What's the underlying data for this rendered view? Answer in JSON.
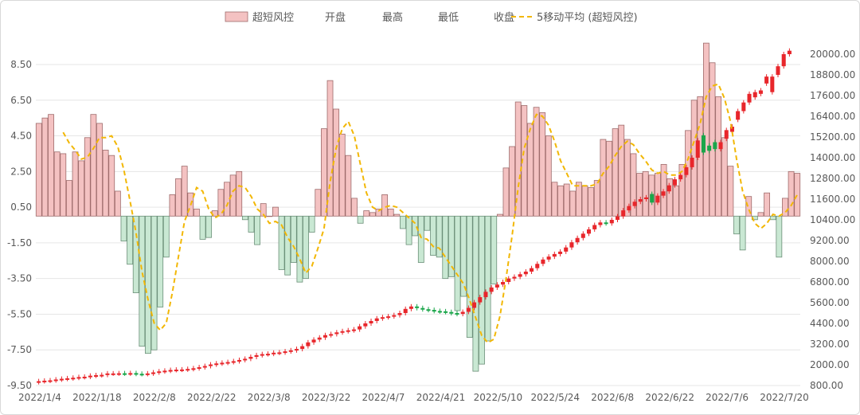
{
  "chart_data": {
    "type": "bar",
    "legend": {
      "position": "top",
      "items": [
        "超短风控",
        "开盘",
        "最高",
        "最低",
        "收盘",
        "5移动平均 (超短风控)"
      ]
    },
    "left_axis": {
      "ticks": [
        "8.50",
        "6.50",
        "4.50",
        "2.50",
        "0.50",
        "-1.50",
        "-3.50",
        "-5.50",
        "-7.50",
        "-9.50"
      ],
      "ylim": [
        -9.5,
        9.5
      ]
    },
    "right_axis": {
      "ticks": [
        "20000.00",
        "18800.00",
        "17600.00",
        "16400.00",
        "15200.00",
        "14000.00",
        "12800.00",
        "11600.00",
        "10400.00",
        "9200.00",
        "8000.00",
        "6800.00",
        "5600.00",
        "4400.00",
        "3200.00",
        "2000.00",
        "800.00"
      ],
      "ylim": [
        800,
        20600
      ]
    },
    "x_tick_labels": [
      "2022/1/4",
      "2022/1/18",
      "2022/2/8",
      "2022/2/22",
      "2022/3/8",
      "2022/3/22",
      "2022/4/7",
      "2022/4/21",
      "2022/5/10",
      "2022/5/24",
      "2022/6/8",
      "2022/6/22",
      "2022/7/6",
      "2022/7/20"
    ],
    "bar_values": [
      5.2,
      5.5,
      5.7,
      3.6,
      3.5,
      2.0,
      3.6,
      3.1,
      4.4,
      5.7,
      5.2,
      3.7,
      3.4,
      1.4,
      -1.4,
      -2.7,
      -4.3,
      -7.3,
      -7.7,
      -7.5,
      -5.1,
      -2.3,
      1.2,
      2.1,
      2.8,
      1.3,
      0.4,
      -1.3,
      -1.2,
      0.3,
      1.5,
      1.9,
      2.3,
      2.5,
      -0.2,
      -0.9,
      -1.6,
      0.7,
      0.0,
      0.5,
      -3.0,
      -3.3,
      -2.6,
      -3.7,
      -3.5,
      -0.9,
      1.5,
      4.9,
      7.6,
      6.0,
      4.6,
      3.4,
      1.0,
      -0.4,
      0.3,
      0.2,
      0.4,
      1.2,
      0.4,
      0.1,
      -0.7,
      -1.6,
      -1.1,
      -2.6,
      -0.8,
      -2.2,
      -2.3,
      -3.5,
      -3.4,
      -5.3,
      -4.5,
      -6.8,
      -8.7,
      -8.3,
      -7.0,
      -3.8,
      0.1,
      2.7,
      3.9,
      6.4,
      6.2,
      5.2,
      6.1,
      5.8,
      4.5,
      1.9,
      1.7,
      1.8,
      1.4,
      1.9,
      1.7,
      1.6,
      2.0,
      4.3,
      4.2,
      4.9,
      5.1,
      4.3,
      3.5,
      2.4,
      2.5,
      2.3,
      2.4,
      2.9,
      2.1,
      1.7,
      2.9,
      4.8,
      6.5,
      6.7,
      9.7,
      8.6,
      6.7,
      4.4,
      2.8,
      -1.0,
      -1.9,
      1.1,
      -0.2,
      0.2,
      1.3,
      -0.2,
      -2.3,
      1.0,
      2.5,
      2.4
    ],
    "ma5_values": [
      null,
      null,
      null,
      null,
      4.7,
      4.1,
      3.7,
      3.2,
      3.3,
      3.8,
      4.4,
      4.4,
      4.5,
      3.9,
      2.6,
      0.9,
      -0.9,
      -3.1,
      -4.7,
      -6.0,
      -6.4,
      -6.0,
      -4.3,
      -2.3,
      -0.3,
      0.6,
      1.6,
      1.4,
      0.4,
      -0.1,
      0.1,
      0.6,
      1.4,
      1.7,
      1.6,
      1.1,
      0.4,
      0.1,
      -0.4,
      -0.3,
      -0.5,
      -1.2,
      -1.7,
      -2.4,
      -3.2,
      -2.8,
      -1.8,
      -0.7,
      1.9,
      3.8,
      4.9,
      5.3,
      4.5,
      2.9,
      1.3,
      0.5,
      0.3,
      0.5,
      0.6,
      0.5,
      0.2,
      -0.1,
      -0.4,
      -1.2,
      -1.3,
      -1.7,
      -1.8,
      -2.3,
      -2.8,
      -3.3,
      -3.8,
      -4.7,
      -5.7,
      -6.7,
      -7.1,
      -6.9,
      -5.6,
      -3.5,
      -1.1,
      1.6,
      3.8,
      4.9,
      5.7,
      5.6,
      5.1,
      4.2,
      3.1,
      2.4,
      1.7,
      1.7,
      1.7,
      1.7,
      1.8,
      2.4,
      2.8,
      3.4,
      3.9,
      4.2,
      4.0,
      3.5,
      3.1,
      2.6,
      2.4,
      2.5,
      2.3,
      2.3,
      2.5,
      3.2,
      4.2,
      5.2,
      6.7,
      7.3,
      7.4,
      6.6,
      5.3,
      3.2,
      1.4,
      0.4,
      -0.4,
      -0.7,
      -0.4,
      0.1,
      0.0,
      0.2,
      0.6,
      1.2
    ],
    "candles": [
      {
        "o": 1000,
        "c": 1050
      },
      {
        "o": 1050,
        "c": 1080
      },
      {
        "o": 1080,
        "c": 1100
      },
      {
        "o": 1100,
        "c": 1150
      },
      {
        "o": 1150,
        "c": 1190
      },
      {
        "o": 1190,
        "c": 1220
      },
      {
        "o": 1220,
        "c": 1250
      },
      {
        "o": 1250,
        "c": 1290
      },
      {
        "o": 1290,
        "c": 1310
      },
      {
        "o": 1310,
        "c": 1370
      },
      {
        "o": 1370,
        "c": 1400
      },
      {
        "o": 1400,
        "c": 1420
      },
      {
        "o": 1420,
        "c": 1500
      },
      {
        "o": 1500,
        "c": 1500
      },
      {
        "o": 1500,
        "c": 1510
      },
      {
        "o": 1510,
        "c": 1500
      },
      {
        "o": 1500,
        "c": 1520
      },
      {
        "o": 1520,
        "c": 1480
      },
      {
        "o": 1480,
        "c": 1470
      },
      {
        "o": 1470,
        "c": 1500
      },
      {
        "o": 1500,
        "c": 1560
      },
      {
        "o": 1560,
        "c": 1620
      },
      {
        "o": 1620,
        "c": 1660
      },
      {
        "o": 1660,
        "c": 1700
      },
      {
        "o": 1700,
        "c": 1720
      },
      {
        "o": 1720,
        "c": 1730
      },
      {
        "o": 1730,
        "c": 1760
      },
      {
        "o": 1760,
        "c": 1800
      },
      {
        "o": 1800,
        "c": 1860
      },
      {
        "o": 1860,
        "c": 1930
      },
      {
        "o": 1930,
        "c": 2020
      },
      {
        "o": 2020,
        "c": 2080
      },
      {
        "o": 2080,
        "c": 2120
      },
      {
        "o": 2120,
        "c": 2160
      },
      {
        "o": 2160,
        "c": 2210
      },
      {
        "o": 2210,
        "c": 2280
      },
      {
        "o": 2280,
        "c": 2350
      },
      {
        "o": 2350,
        "c": 2460
      },
      {
        "o": 2460,
        "c": 2560
      },
      {
        "o": 2560,
        "c": 2620
      },
      {
        "o": 2620,
        "c": 2640
      },
      {
        "o": 2640,
        "c": 2700
      },
      {
        "o": 2700,
        "c": 2720
      },
      {
        "o": 2720,
        "c": 2780
      },
      {
        "o": 2780,
        "c": 2840
      },
      {
        "o": 2840,
        "c": 2920
      },
      {
        "o": 2920,
        "c": 3080
      },
      {
        "o": 3080,
        "c": 3300
      },
      {
        "o": 3300,
        "c": 3460
      },
      {
        "o": 3460,
        "c": 3580
      },
      {
        "o": 3580,
        "c": 3720
      },
      {
        "o": 3720,
        "c": 3780
      },
      {
        "o": 3780,
        "c": 3880
      },
      {
        "o": 3880,
        "c": 3950
      },
      {
        "o": 3950,
        "c": 4000
      },
      {
        "o": 4000,
        "c": 4050
      },
      {
        "o": 4050,
        "c": 4230
      },
      {
        "o": 4230,
        "c": 4400
      },
      {
        "o": 4400,
        "c": 4540
      },
      {
        "o": 4540,
        "c": 4690
      },
      {
        "o": 4690,
        "c": 4760
      },
      {
        "o": 4760,
        "c": 4810
      },
      {
        "o": 4810,
        "c": 4880
      },
      {
        "o": 4880,
        "c": 5000
      },
      {
        "o": 5000,
        "c": 5240
      },
      {
        "o": 5240,
        "c": 5380
      },
      {
        "o": 5380,
        "c": 5290
      },
      {
        "o": 5290,
        "c": 5220
      },
      {
        "o": 5220,
        "c": 5180
      },
      {
        "o": 5180,
        "c": 5120
      },
      {
        "o": 5120,
        "c": 5100
      },
      {
        "o": 5100,
        "c": 5060
      },
      {
        "o": 5060,
        "c": 5000
      },
      {
        "o": 5000,
        "c": 4950
      },
      {
        "o": 4950,
        "c": 5070
      },
      {
        "o": 5070,
        "c": 5300
      },
      {
        "o": 5300,
        "c": 5620
      },
      {
        "o": 5620,
        "c": 5920
      },
      {
        "o": 5920,
        "c": 6230
      },
      {
        "o": 6230,
        "c": 6480
      },
      {
        "o": 6480,
        "c": 6650
      },
      {
        "o": 6650,
        "c": 6800
      },
      {
        "o": 6800,
        "c": 7000
      },
      {
        "o": 7000,
        "c": 7100
      },
      {
        "o": 7100,
        "c": 7250
      },
      {
        "o": 7250,
        "c": 7400
      },
      {
        "o": 7400,
        "c": 7600
      },
      {
        "o": 7600,
        "c": 7850
      },
      {
        "o": 7850,
        "c": 8100
      },
      {
        "o": 8100,
        "c": 8270
      },
      {
        "o": 8270,
        "c": 8420
      },
      {
        "o": 8420,
        "c": 8560
      },
      {
        "o": 8560,
        "c": 8800
      },
      {
        "o": 8800,
        "c": 9100
      },
      {
        "o": 9100,
        "c": 9350
      },
      {
        "o": 9350,
        "c": 9600
      },
      {
        "o": 9600,
        "c": 9850
      },
      {
        "o": 9850,
        "c": 10100
      },
      {
        "o": 10100,
        "c": 10250
      },
      {
        "o": 10250,
        "c": 10200
      },
      {
        "o": 10200,
        "c": 10400
      },
      {
        "o": 10400,
        "c": 10600
      },
      {
        "o": 10600,
        "c": 10950
      },
      {
        "o": 10950,
        "c": 11200
      },
      {
        "o": 11200,
        "c": 11450
      },
      {
        "o": 11450,
        "c": 11600
      },
      {
        "o": 11600,
        "c": 11700
      },
      {
        "o": 11900,
        "c": 11400
      },
      {
        "o": 11400,
        "c": 11800
      },
      {
        "o": 11800,
        "c": 12050
      },
      {
        "o": 12050,
        "c": 12400
      },
      {
        "o": 12400,
        "c": 12750
      },
      {
        "o": 12750,
        "c": 13000
      },
      {
        "o": 13000,
        "c": 13450
      },
      {
        "o": 13450,
        "c": 14000
      },
      {
        "o": 14000,
        "c": 15000
      },
      {
        "o": 15300,
        "c": 14300
      },
      {
        "o": 14700,
        "c": 14400
      },
      {
        "o": 14900,
        "c": 14500
      },
      {
        "o": 14500,
        "c": 14900
      }
    ],
    "candles_tail": [
      {
        "o": 15100,
        "c": 15600
      },
      {
        "o": 15500,
        "c": 15800
      },
      {
        "o": 16200,
        "c": 16700
      },
      {
        "o": 16700,
        "c": 17200
      },
      {
        "o": 17200,
        "c": 17700
      },
      {
        "o": 17500,
        "c": 17800
      },
      {
        "o": 17700,
        "c": 17900
      },
      {
        "o": 18300,
        "c": 18700
      },
      {
        "o": 17800,
        "c": 18700
      },
      {
        "o": 18800,
        "c": 19300
      },
      {
        "o": 19300,
        "c": 20000
      },
      {
        "o": 20000,
        "c": 20200
      }
    ]
  }
}
